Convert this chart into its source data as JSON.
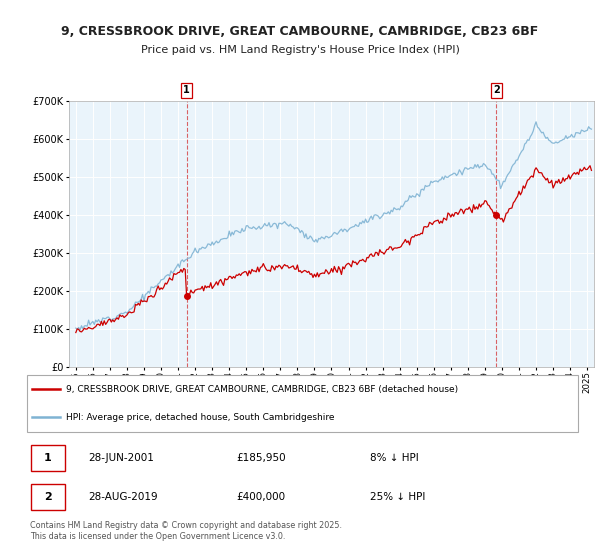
{
  "title1": "9, CRESSBROOK DRIVE, GREAT CAMBOURNE, CAMBRIDGE, CB23 6BF",
  "title2": "Price paid vs. HM Land Registry's House Price Index (HPI)",
  "legend_line1": "9, CRESSBROOK DRIVE, GREAT CAMBOURNE, CAMBRIDGE, CB23 6BF (detached house)",
  "legend_line2": "HPI: Average price, detached house, South Cambridgeshire",
  "annotation1_date": "28-JUN-2001",
  "annotation1_price": "£185,950",
  "annotation1_hpi": "8% ↓ HPI",
  "annotation2_date": "28-AUG-2019",
  "annotation2_price": "£400,000",
  "annotation2_hpi": "25% ↓ HPI",
  "footnote": "Contains HM Land Registry data © Crown copyright and database right 2025.\nThis data is licensed under the Open Government Licence v3.0.",
  "line_color_red": "#cc0000",
  "line_color_blue": "#7fb3d3",
  "vline_color": "#cc0000",
  "purchase1_year": 2001.5,
  "purchase1_value": 185950,
  "purchase2_year": 2019.67,
  "purchase2_value": 400000,
  "ylim_min": 0,
  "ylim_max": 700000,
  "xlim_min": 1994.6,
  "xlim_max": 2025.4,
  "plot_bg_color": "#eaf4fb",
  "fig_bg_color": "#ffffff",
  "grid_color": "#ffffff"
}
